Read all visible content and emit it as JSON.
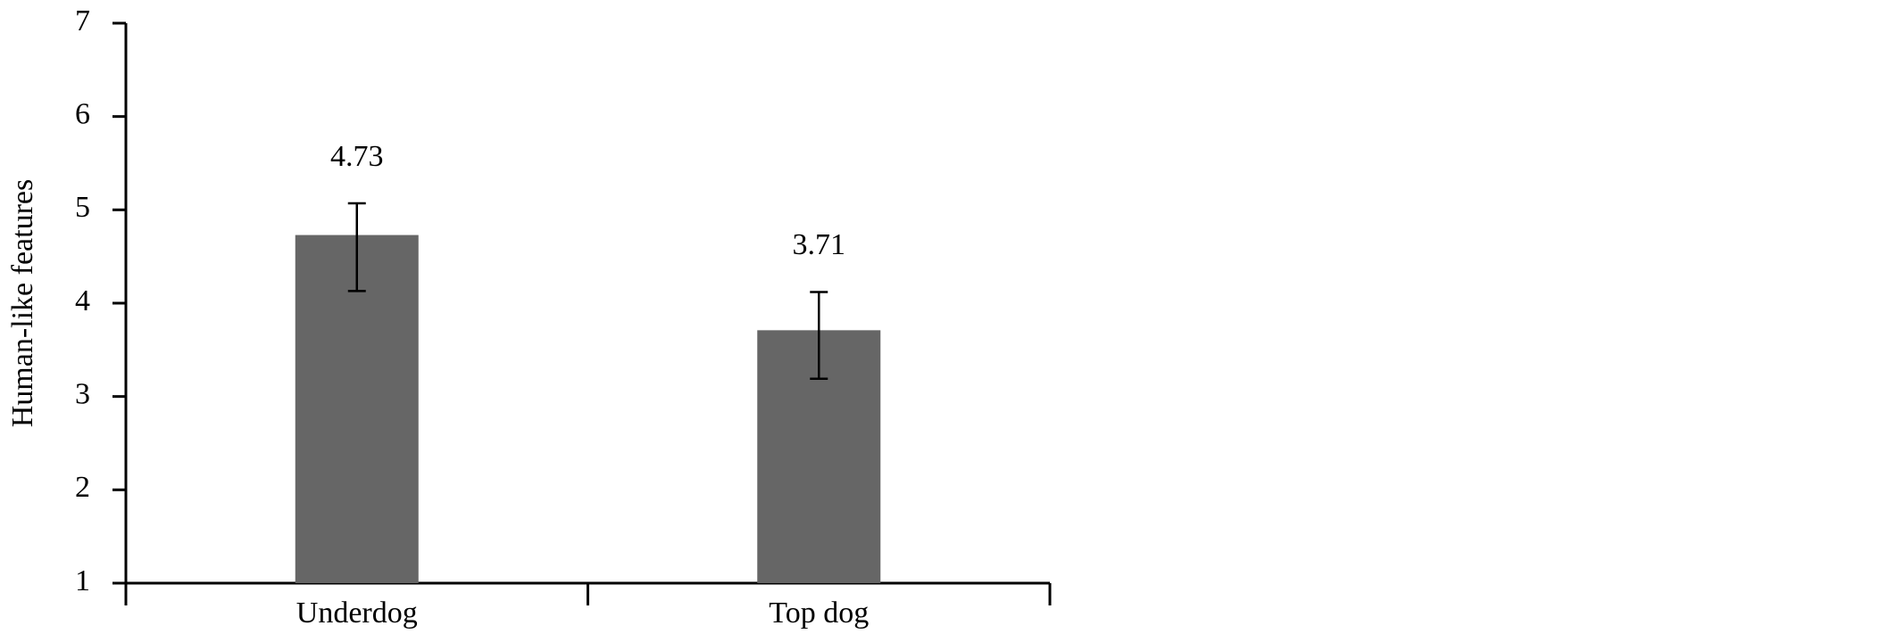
{
  "chart_data": {
    "type": "bar",
    "y_label": "Human-like features",
    "categories": [
      "Underdog",
      "Top dog"
    ],
    "values": [
      4.73,
      3.71
    ],
    "error_minus": [
      0.6,
      0.52
    ],
    "error_plus": [
      0.34,
      0.41
    ],
    "color": "#666666",
    "ylim": [
      1,
      7
    ],
    "yticks": [
      1,
      2,
      3,
      4,
      5,
      6,
      7
    ],
    "grid": false
  }
}
